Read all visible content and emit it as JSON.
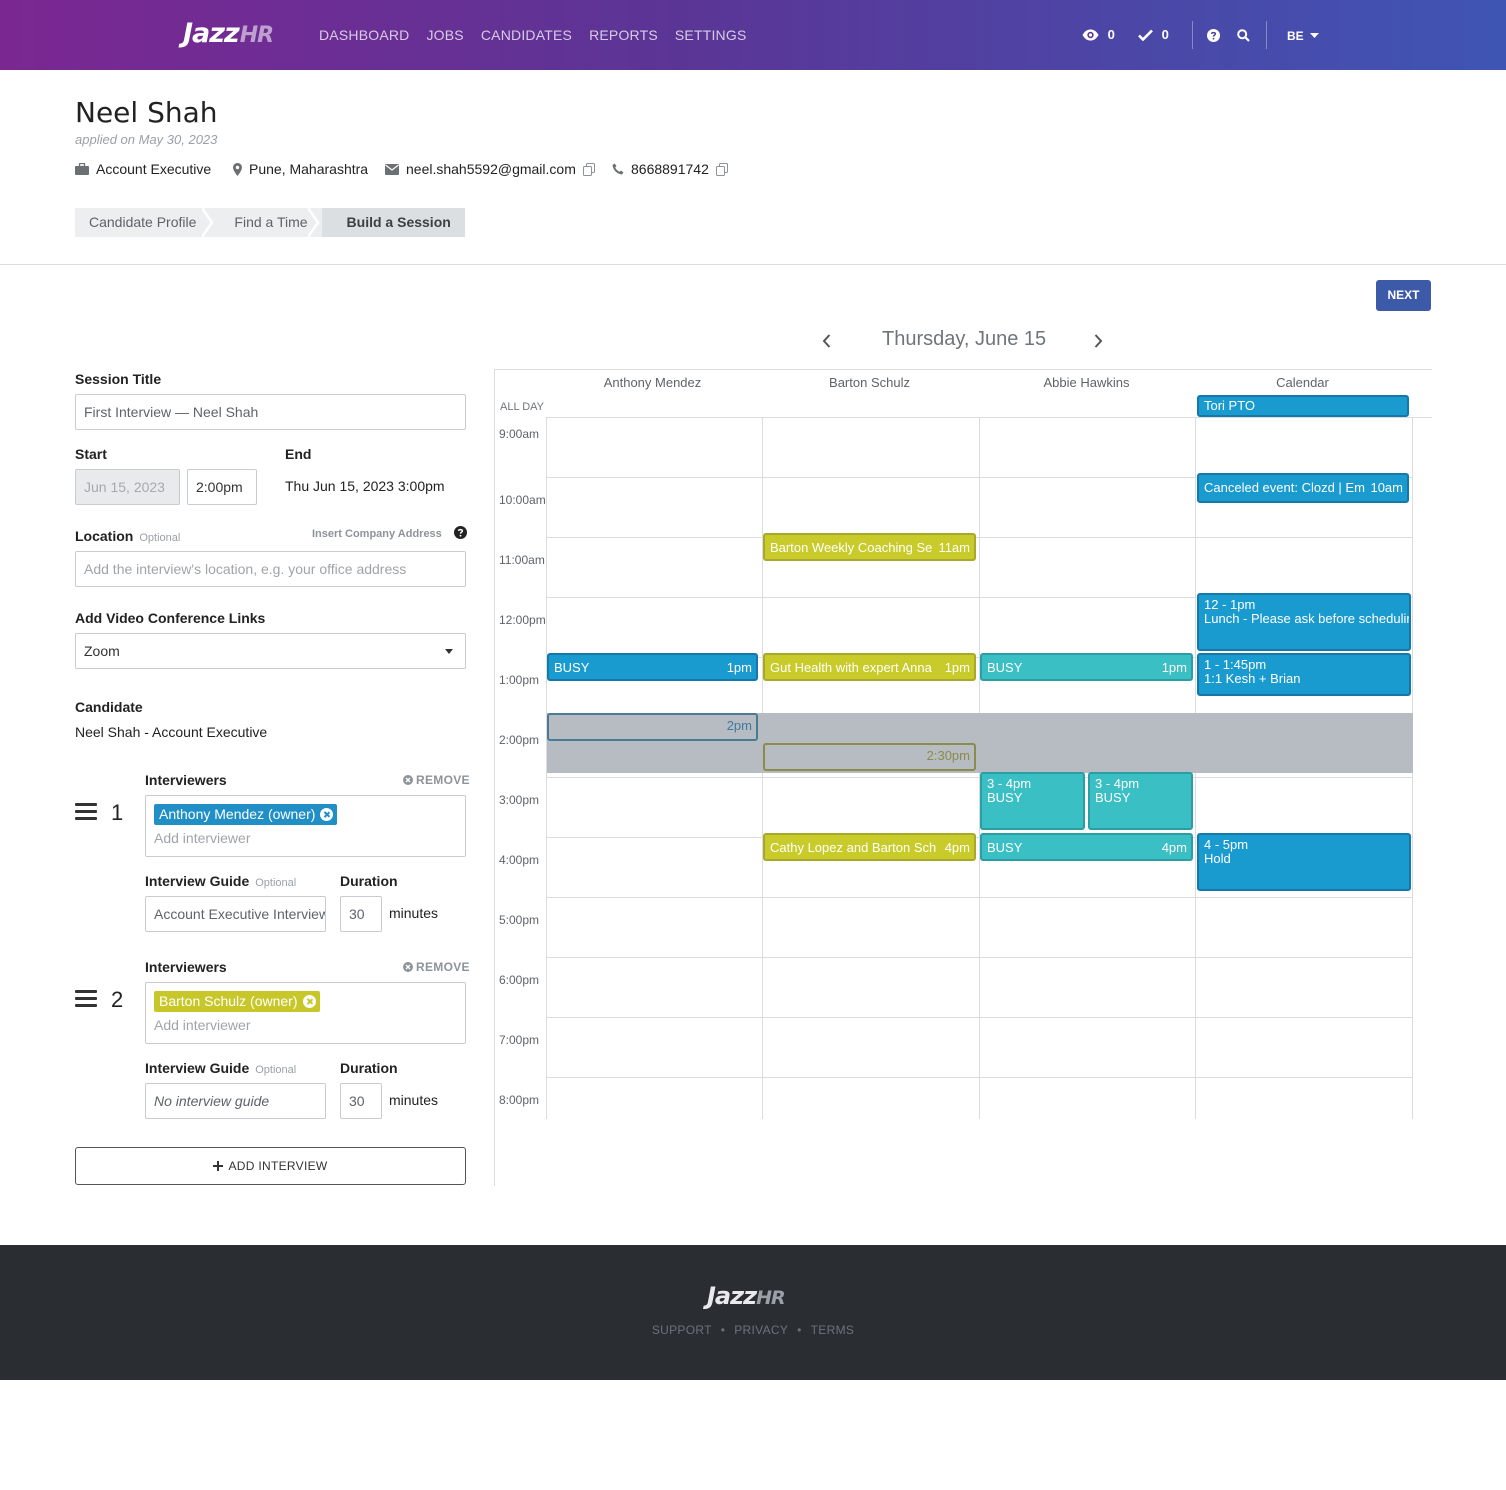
{
  "nav": {
    "logo_main": "Jazz",
    "logo_suffix": "HR",
    "items": [
      "DASHBOARD",
      "JOBS",
      "CANDIDATES",
      "REPORTS",
      "SETTINGS"
    ],
    "views_count": "0",
    "tasks_count": "0",
    "user_initials": "BE"
  },
  "candidate": {
    "name": "Neel Shah",
    "applied": "applied on May 30, 2023",
    "job": "Account Executive",
    "location": "Pune, Maharashtra",
    "email": "neel.shah5592@gmail.com",
    "phone": "8668891742"
  },
  "steps": [
    "Candidate Profile",
    "Find a Time",
    "Build a Session"
  ],
  "next_label": "NEXT",
  "form": {
    "session_title_label": "Session Title",
    "session_title_value": "First Interview — Neel Shah",
    "start_label": "Start",
    "start_date": "Jun 15, 2023",
    "start_time": "2:00pm",
    "end_label": "End",
    "end_value": "Thu Jun 15, 2023 3:00pm",
    "location_label": "Location",
    "optional": "Optional",
    "insert_address": "Insert Company Address",
    "location_placeholder": "Add the interview's location, e.g. your office address",
    "video_label": "Add Video Conference Links",
    "video_value": "Zoom",
    "candidate_label": "Candidate",
    "candidate_value": "Neel Shah - Account Executive",
    "interviewers_label": "Interviewers",
    "remove_label": "REMOVE",
    "add_interviewer": "Add interviewer",
    "guide_label": "Interview Guide",
    "duration_label": "Duration",
    "minutes": "minutes",
    "add_interview": "ADD INTERVIEW",
    "interviews": [
      {
        "num": "1",
        "chip": "Anthony Mendez (owner)",
        "guide": "Account Executive Interview",
        "duration": "30"
      },
      {
        "num": "2",
        "chip": "Barton Schulz (owner)",
        "guide": "No interview guide",
        "duration": "30"
      }
    ]
  },
  "calendar": {
    "date": "Thursday, June 15",
    "columns": [
      "Anthony Mendez",
      "Barton Schulz",
      "Abbie Hawkins",
      "Calendar"
    ],
    "all_day": "ALL DAY",
    "times": [
      "9:00am",
      "10:00am",
      "11:00am",
      "12:00pm",
      "1:00pm",
      "2:00pm",
      "3:00pm",
      "4:00pm",
      "5:00pm",
      "6:00pm",
      "7:00pm",
      "8:00pm"
    ],
    "events": {
      "tori": "Tori PTO",
      "canceled": "Canceled event: Clozd | Em",
      "canceled_time": "10am",
      "barton_coaching": "Barton Weekly Coaching Se",
      "barton_coaching_time": "11am",
      "lunch_time": "12 - 1pm",
      "lunch_title": "Lunch - Please ask before scheduling",
      "anthony_busy": "BUSY",
      "anthony_busy_time": "1pm",
      "gut_health": "Gut Health with expert Anna",
      "gut_health_time": "1pm",
      "abbie_busy": "BUSY",
      "abbie_busy_time": "1pm",
      "kesh_time": "1 - 1:45pm",
      "kesh_title": "1:1 Kesh + Brian",
      "proposed_1": "2pm",
      "proposed_2": "2:30pm",
      "abbie_b1_time": "3 - 4pm",
      "abbie_b1_title": "BUSY",
      "abbie_b2_time": "3 - 4pm",
      "abbie_b2_title": "BUSY",
      "cathy": "Cathy Lopez and Barton Sch",
      "cathy_time": "4pm",
      "abbie_busy4": "BUSY",
      "abbie_busy4_time": "4pm",
      "hold_time": "4 - 5pm",
      "hold_title": "Hold"
    }
  },
  "footer": {
    "logo_main": "Jazz",
    "logo_suffix": "HR",
    "links": [
      "SUPPORT",
      "PRIVACY",
      "TERMS"
    ]
  },
  "colors": {
    "nav_gradient_start": "#7b2792",
    "nav_gradient_end": "#3f55b4",
    "primary_button": "#3d5aa8",
    "event_blue": "#1a9bd0",
    "event_teal": "#3abfc4",
    "event_yellow": "#c9cb2a",
    "footer_bg": "#2a2e33"
  }
}
